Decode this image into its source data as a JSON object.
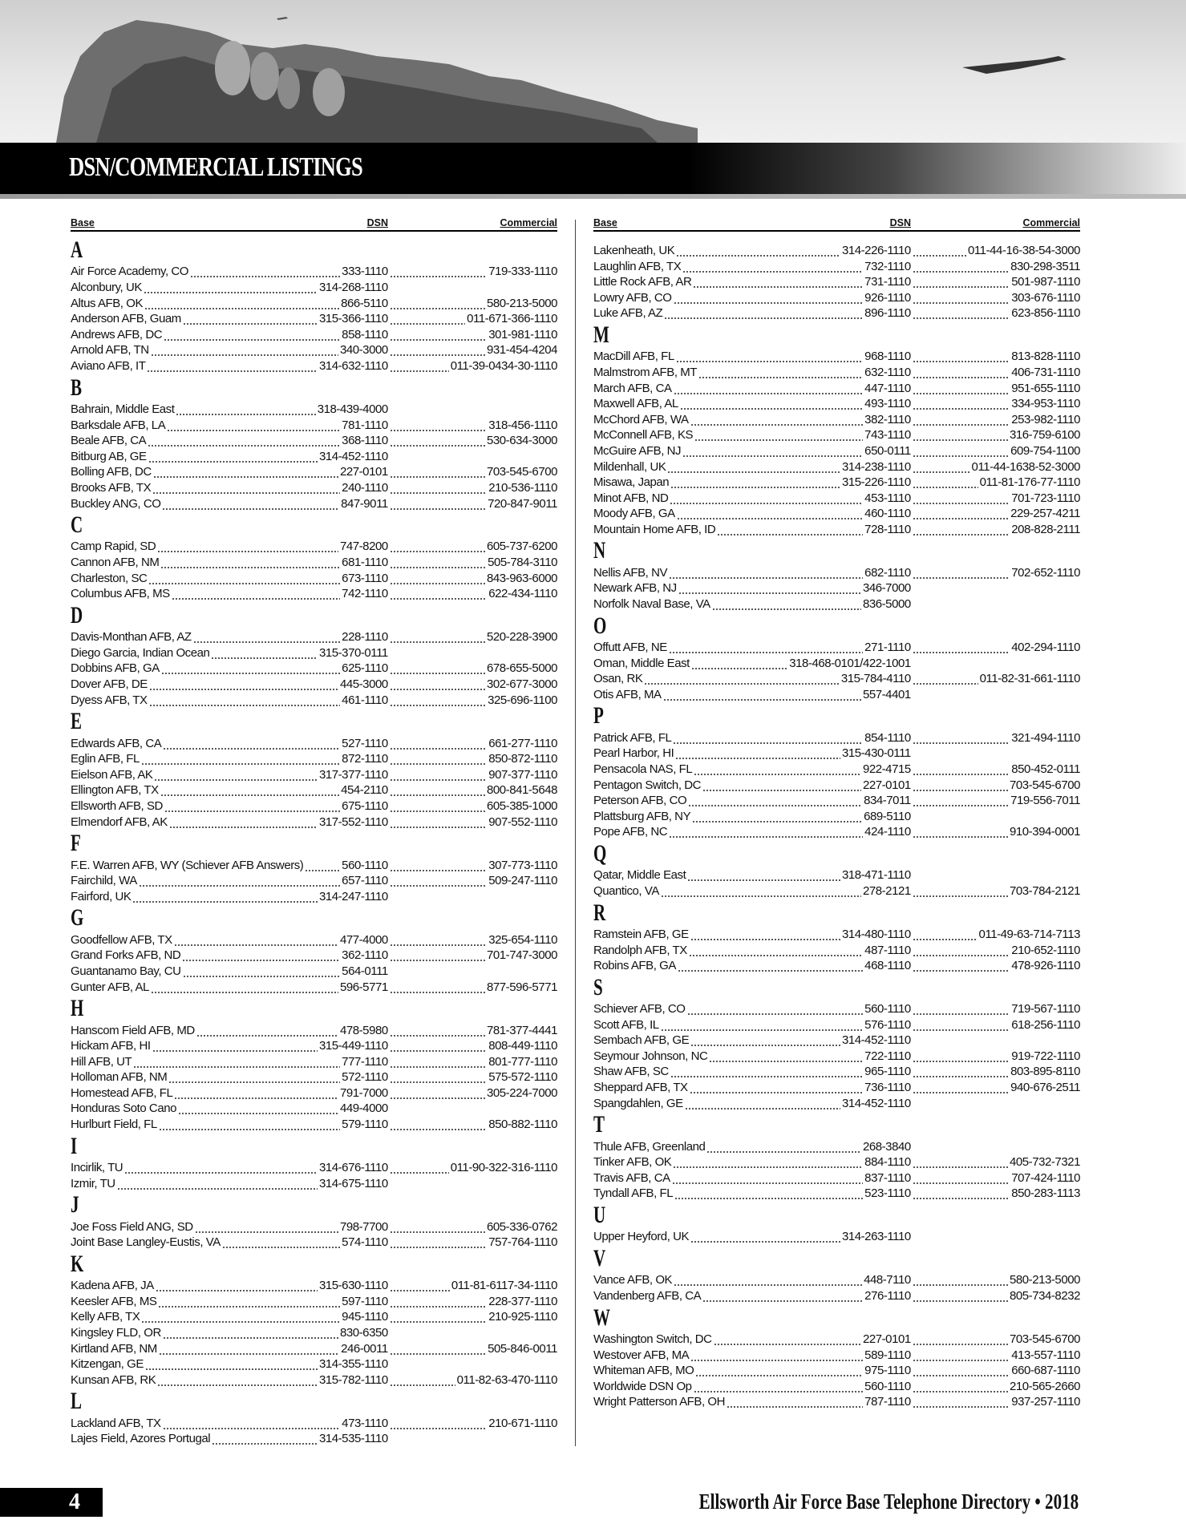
{
  "header": {
    "title": "DSN/COMMERCIAL LISTINGS"
  },
  "columns": {
    "base": "Base",
    "dsn": "DSN",
    "commercial": "Commercial"
  },
  "left_sections": [
    {
      "letter": "A",
      "entries": [
        [
          "Air Force Academy, CO",
          "333-1110",
          "719-333-1110"
        ],
        [
          "Alconbury, UK",
          "314-268-1110",
          ""
        ],
        [
          "Altus AFB, OK",
          "866-5110",
          "580-213-5000"
        ],
        [
          "Anderson AFB, Guam",
          "315-366-1110",
          "011-671-366-1110"
        ],
        [
          "Andrews AFB, DC",
          "858-1110",
          "301-981-1110"
        ],
        [
          "Arnold AFB, TN",
          "340-3000",
          "931-454-4204"
        ],
        [
          "Aviano AFB, IT",
          "314-632-1110",
          "011-39-0434-30-1110"
        ]
      ]
    },
    {
      "letter": "B",
      "entries": [
        [
          "Bahrain, Middle East",
          "318-439-4000",
          ""
        ],
        [
          "Barksdale AFB, LA",
          "781-1110",
          "318-456-1110"
        ],
        [
          "Beale AFB, CA",
          "368-1110",
          "530-634-3000"
        ],
        [
          "Bitburg AB, GE",
          "314-452-1110",
          ""
        ],
        [
          "Bolling AFB, DC",
          "227-0101",
          "703-545-6700"
        ],
        [
          "Brooks AFB, TX",
          "240-1110",
          "210-536-1110"
        ],
        [
          "Buckley ANG, CO",
          "847-9011",
          "720-847-9011"
        ]
      ]
    },
    {
      "letter": "C",
      "entries": [
        [
          "Camp Rapid, SD",
          "747-8200",
          "605-737-6200"
        ],
        [
          "Cannon AFB, NM",
          "681-1110",
          "505-784-3110"
        ],
        [
          "Charleston, SC",
          "673-1110",
          "843-963-6000"
        ],
        [
          "Columbus AFB, MS",
          "742-1110",
          "622-434-1110"
        ]
      ]
    },
    {
      "letter": "D",
      "entries": [
        [
          "Davis-Monthan AFB, AZ",
          "228-1110",
          "520-228-3900"
        ],
        [
          "Diego Garcia, Indian Ocean",
          "315-370-0111",
          ""
        ],
        [
          "Dobbins AFB, GA",
          "625-1110",
          "678-655-5000"
        ],
        [
          "Dover AFB, DE",
          "445-3000",
          "302-677-3000"
        ],
        [
          "Dyess AFB, TX",
          "461-1110",
          "325-696-1100"
        ]
      ]
    },
    {
      "letter": "E",
      "entries": [
        [
          "Edwards AFB, CA",
          "527-1110",
          "661-277-1110"
        ],
        [
          "Eglin AFB, FL",
          "872-1110",
          "850-872-1110"
        ],
        [
          "Eielson AFB, AK",
          "317-377-1110",
          "907-377-1110"
        ],
        [
          "Ellington AFB, TX",
          "454-2110",
          "800-841-5648"
        ],
        [
          "Ellsworth AFB, SD",
          "675-1110",
          "605-385-1000"
        ],
        [
          "Elmendorf AFB, AK",
          "317-552-1110",
          "907-552-1110"
        ]
      ]
    },
    {
      "letter": "F",
      "entries": [
        [
          "F.E. Warren AFB, WY (Schiever AFB Answers)",
          "560-1110",
          "307-773-1110"
        ],
        [
          "Fairchild, WA",
          "657-1110",
          "509-247-1110"
        ],
        [
          "Fairford, UK",
          "314-247-1110",
          ""
        ]
      ]
    },
    {
      "letter": "G",
      "entries": [
        [
          "Goodfellow AFB, TX",
          "477-4000",
          "325-654-1110"
        ],
        [
          "Grand Forks AFB, ND",
          "362-1110",
          "701-747-3000"
        ],
        [
          "Guantanamo Bay, CU",
          "564-0111",
          ""
        ],
        [
          "Gunter AFB, AL",
          "596-5771",
          "877-596-5771"
        ]
      ]
    },
    {
      "letter": "H",
      "entries": [
        [
          "Hanscom Field AFB, MD",
          "478-5980",
          "781-377-4441"
        ],
        [
          "Hickam AFB, HI",
          "315-449-1110",
          "808-449-1110"
        ],
        [
          "Hill AFB, UT",
          "777-1110",
          "801-777-1110"
        ],
        [
          "Holloman AFB, NM",
          "572-1110",
          "575-572-1110"
        ],
        [
          "Homestead AFB, FL",
          "791-7000",
          "305-224-7000"
        ],
        [
          "Honduras Soto Cano",
          "449-4000",
          ""
        ],
        [
          "Hurlburt Field, FL",
          "579-1110",
          "850-882-1110"
        ]
      ]
    },
    {
      "letter": "I",
      "entries": [
        [
          "Incirlik, TU",
          "314-676-1110",
          "011-90-322-316-1110"
        ],
        [
          "Izmir, TU",
          "314-675-1110",
          ""
        ]
      ]
    },
    {
      "letter": "J",
      "entries": [
        [
          "Joe Foss Field ANG, SD",
          "798-7700",
          "605-336-0762"
        ],
        [
          "Joint Base Langley-Eustis, VA",
          "574-1110",
          "757-764-1110"
        ]
      ]
    },
    {
      "letter": "K",
      "entries": [
        [
          "Kadena AFB, JA",
          "315-630-1110",
          "011-81-6117-34-1110"
        ],
        [
          "Keesler AFB, MS",
          "597-1110",
          "228-377-1110"
        ],
        [
          "Kelly AFB, TX",
          "945-1110",
          "210-925-1110"
        ],
        [
          "Kingsley FLD, OR",
          "830-6350",
          ""
        ],
        [
          "Kirtland AFB, NM",
          "246-0011",
          "505-846-0011"
        ],
        [
          "Kitzengan, GE",
          "314-355-1110",
          ""
        ],
        [
          "Kunsan AFB, RK",
          "315-782-1110",
          "011-82-63-470-1110"
        ]
      ]
    },
    {
      "letter": "L",
      "entries": [
        [
          "Lackland AFB, TX",
          "473-1110",
          "210-671-1110"
        ],
        [
          "Lajes Field, Azores Portugal",
          "314-535-1110",
          ""
        ]
      ]
    }
  ],
  "right_sections": [
    {
      "letter": "",
      "entries": [
        [
          "Lakenheath, UK",
          "314-226-1110",
          "011-44-16-38-54-3000"
        ],
        [
          "Laughlin AFB, TX",
          "732-1110",
          "830-298-3511"
        ],
        [
          "Little Rock AFB, AR",
          "731-1110",
          "501-987-1110"
        ],
        [
          "Lowry AFB, CO",
          "926-1110",
          "303-676-1110"
        ],
        [
          "Luke AFB, AZ",
          "896-1110",
          "623-856-1110"
        ]
      ]
    },
    {
      "letter": "M",
      "entries": [
        [
          "MacDill AFB, FL",
          "968-1110",
          "813-828-1110"
        ],
        [
          "Malmstrom AFB, MT",
          "632-1110",
          "406-731-1110"
        ],
        [
          "March AFB, CA",
          "447-1110",
          "951-655-1110"
        ],
        [
          "Maxwell AFB, AL",
          "493-1110",
          "334-953-1110"
        ],
        [
          "McChord AFB, WA",
          "382-1110",
          "253-982-1110"
        ],
        [
          "McConnell AFB, KS",
          "743-1110",
          "316-759-6100"
        ],
        [
          "McGuire AFB, NJ",
          "650-0111",
          "609-754-1100"
        ],
        [
          "Mildenhall, UK",
          "314-238-1110",
          "011-44-1638-52-3000"
        ],
        [
          "Misawa, Japan",
          "315-226-1110",
          "011-81-176-77-1110"
        ],
        [
          "Minot AFB, ND",
          "453-1110",
          "701-723-1110"
        ],
        [
          "Moody AFB, GA",
          "460-1110",
          "229-257-4211"
        ],
        [
          "Mountain Home AFB, ID",
          "728-1110",
          "208-828-2111"
        ]
      ]
    },
    {
      "letter": "N",
      "entries": [
        [
          "Nellis AFB, NV",
          "682-1110",
          "702-652-1110"
        ],
        [
          "Newark AFB, NJ",
          "346-7000",
          ""
        ],
        [
          "Norfolk Naval Base, VA",
          "836-5000",
          ""
        ]
      ]
    },
    {
      "letter": "O",
      "entries": [
        [
          "Offutt AFB, NE",
          "271-1110",
          "402-294-1110"
        ],
        [
          "Oman, Middle East",
          "318-468-0101/422-1001",
          ""
        ],
        [
          "Osan, RK",
          "315-784-4110",
          "011-82-31-661-1110"
        ],
        [
          "Otis AFB, MA",
          "557-4401",
          ""
        ]
      ]
    },
    {
      "letter": "P",
      "entries": [
        [
          "Patrick AFB, FL",
          "854-1110",
          "321-494-1110"
        ],
        [
          "Pearl Harbor, HI",
          "315-430-0111",
          ""
        ],
        [
          "Pensacola NAS, FL",
          "922-4715",
          "850-452-0111"
        ],
        [
          "Pentagon Switch, DC",
          "227-0101",
          "703-545-6700"
        ],
        [
          "Peterson AFB, CO",
          "834-7011",
          "719-556-7011"
        ],
        [
          "Plattsburg AFB, NY",
          "689-5110",
          ""
        ],
        [
          "Pope AFB, NC",
          "424-1110",
          "910-394-0001"
        ]
      ]
    },
    {
      "letter": "Q",
      "entries": [
        [
          "Qatar, Middle East",
          "318-471-1110",
          ""
        ],
        [
          "Quantico, VA",
          "278-2121",
          "703-784-2121"
        ]
      ]
    },
    {
      "letter": "R",
      "entries": [
        [
          "Ramstein AFB, GE",
          "314-480-1110",
          "011-49-63-714-7113"
        ],
        [
          "Randolph AFB, TX",
          "487-1110",
          "210-652-1110"
        ],
        [
          "Robins AFB, GA",
          "468-1110",
          "478-926-1110"
        ]
      ]
    },
    {
      "letter": "S",
      "entries": [
        [
          "Schiever AFB, CO",
          "560-1110",
          "719-567-1110"
        ],
        [
          "Scott AFB, IL",
          "576-1110",
          "618-256-1110"
        ],
        [
          "Sembach AFB, GE",
          "314-452-1110",
          ""
        ],
        [
          "Seymour Johnson, NC",
          "722-1110",
          "919-722-1110"
        ],
        [
          "Shaw AFB, SC",
          "965-1110",
          "803-895-8110"
        ],
        [
          "Sheppard AFB, TX",
          "736-1110",
          "940-676-2511"
        ],
        [
          "Spangdahlen, GE",
          "314-452-1110",
          ""
        ]
      ]
    },
    {
      "letter": "T",
      "entries": [
        [
          "Thule AFB, Greenland",
          "268-3840",
          ""
        ],
        [
          "Tinker AFB, OK",
          "884-1110",
          "405-732-7321"
        ],
        [
          "Travis AFB, CA",
          "837-1110",
          "707-424-1110"
        ],
        [
          "Tyndall AFB, FL",
          "523-1110",
          "850-283-1113"
        ]
      ]
    },
    {
      "letter": "U",
      "entries": [
        [
          "Upper Heyford, UK",
          "314-263-1110",
          ""
        ]
      ]
    },
    {
      "letter": "V",
      "entries": [
        [
          "Vance AFB, OK",
          "448-7110",
          "580-213-5000"
        ],
        [
          "Vandenberg AFB, CA",
          "276-1110",
          "805-734-8232"
        ]
      ]
    },
    {
      "letter": "W",
      "entries": [
        [
          "Washington Switch, DC",
          "227-0101",
          "703-545-6700"
        ],
        [
          "Westover AFB, MA",
          "589-1110",
          "413-557-1110"
        ],
        [
          "Whiteman AFB, MO",
          "975-1110",
          "660-687-1110"
        ],
        [
          "Worldwide DSN Op",
          "560-1110",
          "210-565-2660"
        ],
        [
          "Wright Patterson AFB, OH",
          "787-1110",
          "937-257-1110"
        ]
      ]
    }
  ],
  "footer": {
    "page_number": "4",
    "publication": "Ellsworth Air Force Base Telephone Directory • 2018"
  }
}
